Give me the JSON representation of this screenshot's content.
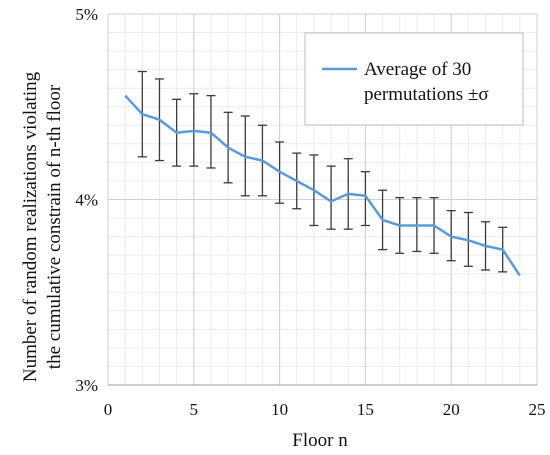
{
  "chart_data": {
    "type": "line",
    "title": "",
    "xlabel": "Floor n",
    "ylabel_lines": [
      "Number of random realizations violating",
      "the cumulative constrain of n-th floor"
    ],
    "xlim": [
      0,
      25
    ],
    "ylim": [
      3,
      5
    ],
    "x_ticks": [
      0,
      5,
      10,
      15,
      20,
      25
    ],
    "x_tick_labels": [
      "0",
      "5",
      "10",
      "15",
      "20",
      "25"
    ],
    "y_ticks": [
      3,
      4,
      5
    ],
    "y_tick_labels": [
      "3%",
      "4%",
      "5%"
    ],
    "grid": true,
    "minor_grid": true,
    "legend_position": "top-right",
    "legend_lines": [
      "Average of 30",
      "permutations ±σ"
    ],
    "line_color": "#5b9bd5",
    "errorbar_color": "#3a3a3a",
    "x": [
      1,
      2,
      3,
      4,
      5,
      6,
      7,
      8,
      9,
      10,
      11,
      12,
      13,
      14,
      15,
      16,
      17,
      18,
      19,
      20,
      21,
      22,
      23,
      24
    ],
    "y": [
      4.56,
      4.46,
      4.43,
      4.36,
      4.37,
      4.36,
      4.28,
      4.23,
      4.21,
      4.15,
      4.1,
      4.05,
      3.99,
      4.03,
      4.02,
      3.89,
      3.86,
      3.86,
      3.86,
      3.8,
      3.78,
      3.75,
      3.73,
      3.59
    ],
    "err_upper": [
      null,
      4.69,
      4.65,
      4.54,
      4.57,
      4.56,
      4.47,
      4.45,
      4.4,
      4.31,
      4.25,
      4.24,
      4.18,
      4.22,
      4.15,
      4.05,
      4.01,
      4.01,
      4.01,
      3.94,
      3.93,
      3.88,
      3.85,
      null
    ],
    "err_lower": [
      null,
      4.23,
      4.21,
      4.18,
      4.18,
      4.17,
      4.09,
      4.02,
      4.02,
      3.98,
      3.95,
      3.86,
      3.84,
      3.84,
      3.86,
      3.73,
      3.71,
      3.72,
      3.71,
      3.67,
      3.64,
      3.62,
      3.61,
      null
    ]
  }
}
